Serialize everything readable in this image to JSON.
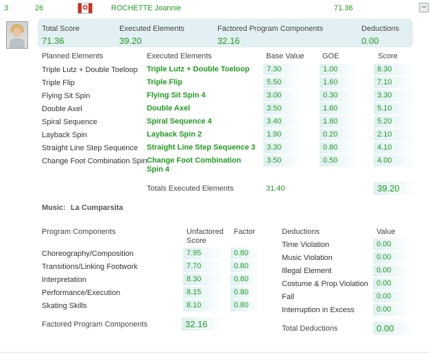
{
  "skater": {
    "rank": "3",
    "start_number": "26",
    "flag_icon": "canada-flag-icon",
    "name": "ROCHETTE Joannie",
    "total_segment_score": "71.36",
    "collapse_symbol": "−"
  },
  "summary": {
    "total_score_label": "Total Score",
    "total_score": "71.36",
    "executed_elements_label": "Executed Elements",
    "executed_elements": "39.20",
    "factored_pc_label": "Factored Program Components",
    "factored_pc": "32.16",
    "deductions_label": "Deductions",
    "deductions": "0.00"
  },
  "elements": {
    "headers": {
      "planned": "Planned Elements",
      "executed": "Executed Elements",
      "base_value": "Base Value",
      "goe": "GOE",
      "score": "Score"
    },
    "rows": [
      {
        "planned": "Triple Lutz + Double Toeloop",
        "executed": "Triple Lutz + Double Toeloop",
        "base": "7.30",
        "goe": "1.00",
        "score": "8.30"
      },
      {
        "planned": "Triple Flip",
        "executed": "Triple Flip",
        "base": "5.50",
        "goe": "1.60",
        "score": "7.10"
      },
      {
        "planned": "Flying Sit Spin",
        "executed": "Flying Sit Spin 4",
        "base": "3.00",
        "goe": "0.30",
        "score": "3.30"
      },
      {
        "planned": "Double Axel",
        "executed": "Double Axel",
        "base": "3.50",
        "goe": "1.60",
        "score": "5.10"
      },
      {
        "planned": "Spiral Sequence",
        "executed": "Spiral Sequence 4",
        "base": "3.40",
        "goe": "1.80",
        "score": "5.20"
      },
      {
        "planned": "Layback Spin",
        "executed": "Layback Spin 2",
        "base": "1.90",
        "goe": "0.20",
        "score": "2.10"
      },
      {
        "planned": "Straight Line Step Sequence",
        "executed": "Straight Line Step Sequence 3",
        "base": "3.30",
        "goe": "0.80",
        "score": "4.10"
      },
      {
        "planned": "Change Foot Combination Spin",
        "executed": "Change Foot Combination",
        "executed_line2": "Spin 4",
        "base": "3.50",
        "goe": "0.50",
        "score": "4.00"
      }
    ],
    "totals_label": "Totals Executed Elements",
    "totals_base": "31.40",
    "totals_score": "39.20"
  },
  "music": {
    "label": "Music:",
    "title": "La Cumparsita"
  },
  "program_components": {
    "header": "Program Components",
    "unfactored_header_line1": "Unfactored",
    "unfactored_header_line2": "Score",
    "factor_header": "Factor",
    "rows": [
      {
        "name": "Choreography/Composition",
        "score": "7.95",
        "factor": "0.80"
      },
      {
        "name": "Transitions/Linking Footwork",
        "score": "7.70",
        "factor": "0.80"
      },
      {
        "name": "Interpretation",
        "score": "8.30",
        "factor": "0.80"
      },
      {
        "name": "Performance/Execution",
        "score": "8.15",
        "factor": "0.80"
      },
      {
        "name": "Skating Skills",
        "score": "8.10",
        "factor": "0.80"
      }
    ],
    "total_label": "Factored Program Components",
    "total": "32.16"
  },
  "deductions": {
    "header": "Deductions",
    "value_header": "Value",
    "rows": [
      {
        "name": "Time Violation",
        "value": "0.00"
      },
      {
        "name": "Music Violation",
        "value": "0.00"
      },
      {
        "name": "Illegal Element",
        "value": "0.00"
      },
      {
        "name": "Costume & Prop Violation",
        "value": "0.00"
      },
      {
        "name": "Fall",
        "value": "0.00"
      },
      {
        "name": "Interruption in Excess",
        "value": "0.00"
      }
    ],
    "total_label": "Total Deductions",
    "total": "0.00"
  }
}
